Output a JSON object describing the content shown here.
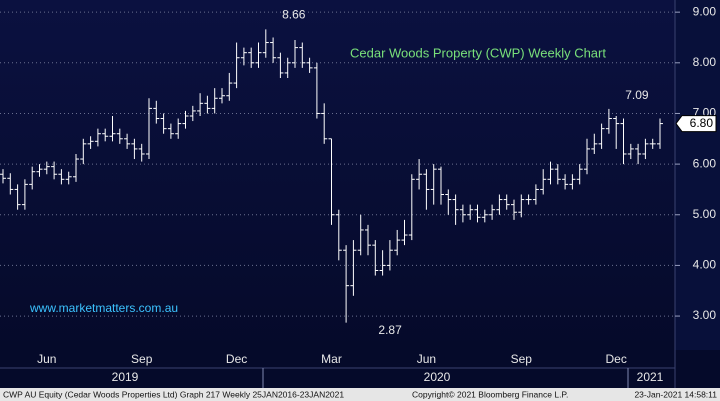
{
  "chart_data": {
    "type": "ohlc",
    "title": "Cedar Woods Property (CWP) Weekly Chart",
    "watermark": "www.marketmatters.com.au",
    "color": "#ffffff",
    "categories": [
      null,
      null,
      null,
      null,
      null,
      null,
      "Jun",
      null,
      null,
      null,
      null,
      null,
      null,
      null,
      null,
      null,
      null,
      null,
      null,
      "Sep",
      null,
      null,
      null,
      null,
      null,
      null,
      null,
      null,
      null,
      null,
      null,
      null,
      "Dec",
      null,
      null,
      null,
      null,
      null,
      null,
      null,
      null,
      null,
      null,
      null,
      null,
      "Mar",
      null,
      null,
      null,
      null,
      null,
      null,
      null,
      null,
      null,
      null,
      null,
      null,
      "Jun",
      null,
      null,
      null,
      null,
      null,
      null,
      null,
      null,
      null,
      null,
      null,
      null,
      "Sep",
      null,
      null,
      null,
      null,
      null,
      null,
      null,
      null,
      null,
      null,
      null,
      null,
      "Dec",
      null,
      null,
      null,
      null,
      null,
      null
    ],
    "years": [
      "2019",
      "2020",
      "2021"
    ],
    "open": [
      5.8,
      5.72,
      5.5,
      5.2,
      5.6,
      5.85,
      5.9,
      5.95,
      5.8,
      5.7,
      5.75,
      6.1,
      6.4,
      6.45,
      6.6,
      6.55,
      6.6,
      6.5,
      6.4,
      6.3,
      6.2,
      7.1,
      6.9,
      6.7,
      6.6,
      6.8,
      6.95,
      7.05,
      7.2,
      7.1,
      7.3,
      7.35,
      7.6,
      8.1,
      8.2,
      8.0,
      8.2,
      8.4,
      8.1,
      7.8,
      8.0,
      8.3,
      8.0,
      7.9,
      7.0,
      6.5,
      5.0,
      4.3,
      3.6,
      4.3,
      4.7,
      4.4,
      3.9,
      4.0,
      4.3,
      4.5,
      4.6,
      5.7,
      5.8,
      5.5,
      5.9,
      5.4,
      5.3,
      5.1,
      5.0,
      5.1,
      4.95,
      5.0,
      5.1,
      5.3,
      5.2,
      5.05,
      5.3,
      5.3,
      5.5,
      5.7,
      5.9,
      5.7,
      5.6,
      5.7,
      5.9,
      6.3,
      6.4,
      6.7,
      6.9,
      6.8,
      6.2,
      6.3,
      6.2,
      6.4,
      6.4
    ],
    "high": [
      5.9,
      5.82,
      5.6,
      5.7,
      5.95,
      6.0,
      6.05,
      6.05,
      5.9,
      5.85,
      6.2,
      6.5,
      6.55,
      6.7,
      6.7,
      6.95,
      6.7,
      6.6,
      6.5,
      6.4,
      7.3,
      7.25,
      7.0,
      6.8,
      6.9,
      7.05,
      7.15,
      7.4,
      7.35,
      7.5,
      7.5,
      7.8,
      8.4,
      8.3,
      8.3,
      8.4,
      8.66,
      8.5,
      8.2,
      8.1,
      8.45,
      8.4,
      8.1,
      8.0,
      7.2,
      6.5,
      5.1,
      4.4,
      4.5,
      5.0,
      4.8,
      4.5,
      4.3,
      4.5,
      4.7,
      4.9,
      5.8,
      6.1,
      5.9,
      6.0,
      5.95,
      5.5,
      5.4,
      5.2,
      5.2,
      5.2,
      5.1,
      5.2,
      5.4,
      5.4,
      5.3,
      5.4,
      5.4,
      5.6,
      5.9,
      6.05,
      6.0,
      5.8,
      5.8,
      6.0,
      6.5,
      6.6,
      6.8,
      7.09,
      6.95,
      6.9,
      6.4,
      6.4,
      6.5,
      6.5,
      6.9
    ],
    "low": [
      5.62,
      5.4,
      5.1,
      5.1,
      5.5,
      5.75,
      5.8,
      5.7,
      5.6,
      5.6,
      5.65,
      6.0,
      6.3,
      6.35,
      6.45,
      6.45,
      6.4,
      6.3,
      6.1,
      6.05,
      6.1,
      6.8,
      6.6,
      6.5,
      6.5,
      6.7,
      6.85,
      6.95,
      7.0,
      7.0,
      7.2,
      7.25,
      7.5,
      7.95,
      7.9,
      7.9,
      8.1,
      8.0,
      7.7,
      7.7,
      7.9,
      7.9,
      7.8,
      6.9,
      6.4,
      4.8,
      4.1,
      2.87,
      3.4,
      4.2,
      4.2,
      3.8,
      3.8,
      3.9,
      4.2,
      4.4,
      4.5,
      5.5,
      5.1,
      5.2,
      5.2,
      5.0,
      4.8,
      4.85,
      4.9,
      4.85,
      4.85,
      4.9,
      5.0,
      5.1,
      4.9,
      4.95,
      5.2,
      5.2,
      5.4,
      5.6,
      5.6,
      5.5,
      5.5,
      5.6,
      5.8,
      6.2,
      6.3,
      6.6,
      6.3,
      6.0,
      6.1,
      6.0,
      6.1,
      6.3,
      6.3
    ],
    "close": [
      5.72,
      5.5,
      5.2,
      5.6,
      5.85,
      5.9,
      5.95,
      5.8,
      5.7,
      5.75,
      6.1,
      6.4,
      6.45,
      6.6,
      6.55,
      6.6,
      6.5,
      6.4,
      6.3,
      6.2,
      7.1,
      6.9,
      6.7,
      6.6,
      6.8,
      6.95,
      7.05,
      7.2,
      7.1,
      7.3,
      7.35,
      7.6,
      8.1,
      8.2,
      8.0,
      8.2,
      8.4,
      8.1,
      7.8,
      8.0,
      8.3,
      8.0,
      7.9,
      7.0,
      6.5,
      5.0,
      4.3,
      3.6,
      4.3,
      4.7,
      4.4,
      3.9,
      4.0,
      4.3,
      4.5,
      4.6,
      5.7,
      5.8,
      5.5,
      5.9,
      5.4,
      5.3,
      5.1,
      5.0,
      5.1,
      4.95,
      5.0,
      5.1,
      5.3,
      5.2,
      5.05,
      5.3,
      5.3,
      5.5,
      5.7,
      5.9,
      5.7,
      5.6,
      5.7,
      5.9,
      6.3,
      6.4,
      6.7,
      6.9,
      6.8,
      6.2,
      6.3,
      6.2,
      6.4,
      6.4,
      6.8
    ],
    "last_price": {
      "value": 6.8,
      "label": "6.80"
    },
    "ylim": [
      2.33,
      9.24
    ],
    "yticks": [
      {
        "value": 3,
        "label": "3.00"
      },
      {
        "value": 4,
        "label": "4.00"
      },
      {
        "value": 5,
        "label": "5.00"
      },
      {
        "value": 6,
        "label": "6.00"
      },
      {
        "value": 7,
        "label": "7.00"
      },
      {
        "value": 8,
        "label": "8.00"
      },
      {
        "value": 9,
        "label": "9.00"
      }
    ],
    "grid": true,
    "footer_left": "CWP AU Equity (Cedar Woods Properties Ltd) Graph 217  Weekly 25JAN2016-23JAN2021",
    "footer_center": "Copyright© 2021 Bloomberg Finance L.P.",
    "footer_right": "23-Jan-2021 14:58:11"
  }
}
